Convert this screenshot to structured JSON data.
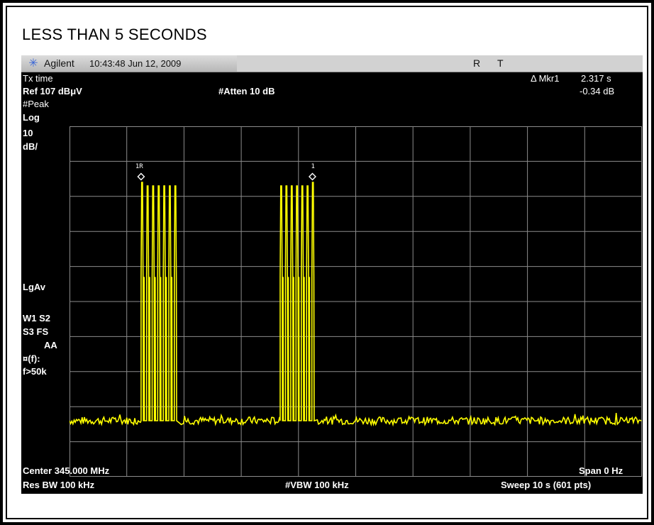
{
  "caption": "LESS THAN 5 SECONDS",
  "title_bar": {
    "icon": "starburst-icon",
    "brand": "Agilent",
    "timestamp": "10:43:48  Jun 12, 2009",
    "indicator_r": "R",
    "indicator_t": "T"
  },
  "header": {
    "measurement_name": "Tx time",
    "ref_level": "Ref 107 dBμV",
    "attenuation": "#Atten 10 dB",
    "marker_readout_label": "Δ Mkr1",
    "marker_delta_time": "2.317 s",
    "marker_delta_amplitude": "-0.34 dB"
  },
  "side_labels": {
    "detector": "#Peak",
    "scale_type": "Log",
    "scale_value": "10",
    "scale_unit": "dB/",
    "avg_type": "LgAv",
    "display_line1": "W1  S2",
    "display_line2": "S3  FS",
    "display_line3": "AA",
    "correction": "¤(f):",
    "correction_value": "f>50k"
  },
  "markers": {
    "reference_label": "1R",
    "delta_label": "1"
  },
  "footer": {
    "center_freq": "Center 345.000 MHz",
    "span": "Span 0 Hz",
    "res_bw": "Res BW 100 kHz",
    "vbw": "#VBW 100 kHz",
    "sweep": "Sweep 10 s (601 pts)"
  },
  "colors": {
    "trace": "#ffff00",
    "grid": "#8c8c8c",
    "screen": "#000000"
  },
  "chart_data": {
    "type": "line",
    "x_unit": "s",
    "xlim": [
      0,
      10
    ],
    "ylim": [
      7,
      107
    ],
    "y_unit": "dBμV",
    "grid_divisions": {
      "x": 10,
      "y": 10
    },
    "noise_floor": 23,
    "pulse_bursts": [
      {
        "pulse_count": 7,
        "start_s": 1.25,
        "end_s": 1.88,
        "peak_first": 91,
        "peak_others": 90,
        "shoulder": 64
      },
      {
        "pulse_count": 7,
        "start_s": 3.68,
        "end_s": 4.28,
        "peak_last": 91,
        "peak_others": 90,
        "shoulder": 64
      }
    ]
  }
}
